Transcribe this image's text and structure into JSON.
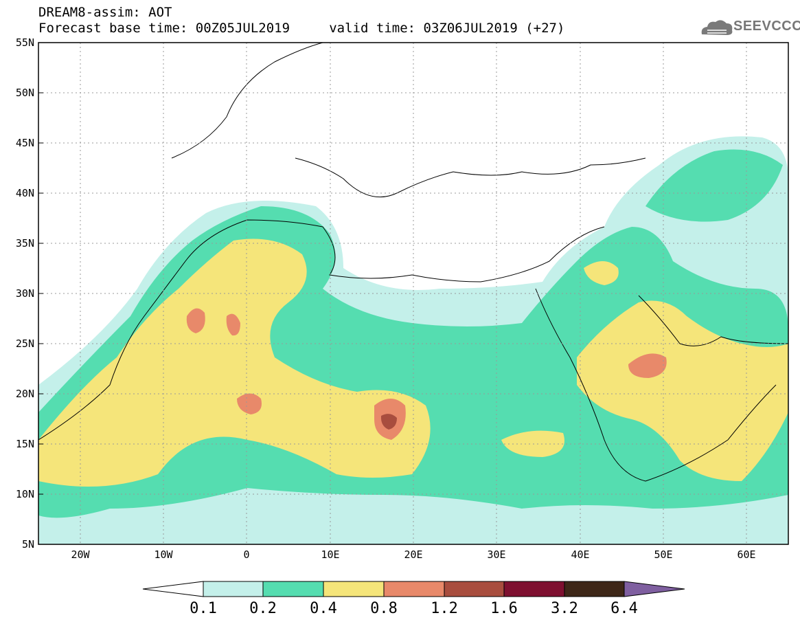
{
  "header": {
    "line1": "DREAM8-assim: AOT",
    "line2": "Forecast base time: 00Z05JUL2019     valid time: 03Z06JUL2019 (+27)"
  },
  "logo": {
    "text": "SEEVCCC",
    "icon": "cloud-icon"
  },
  "map": {
    "lon_range": [
      -25,
      65
    ],
    "lat_range": [
      5,
      55
    ],
    "lat_labels": [
      "5N",
      "10N",
      "15N",
      "20N",
      "25N",
      "30N",
      "35N",
      "40N",
      "45N",
      "50N",
      "55N"
    ],
    "lon_labels": [
      "20W",
      "10W",
      "0",
      "10E",
      "20E",
      "30E",
      "40E",
      "50E",
      "60E"
    ]
  },
  "colorbar": {
    "labels": [
      "0.1",
      "0.2",
      "0.4",
      "0.8",
      "1.2",
      "1.6",
      "3.2",
      "6.4"
    ],
    "colors": [
      "#ffffff",
      "#c4f0ea",
      "#55ddb0",
      "#f5e57a",
      "#e8896a",
      "#a84d3e",
      "#7e1030",
      "#3e2718",
      "#7f5fa0"
    ]
  }
}
